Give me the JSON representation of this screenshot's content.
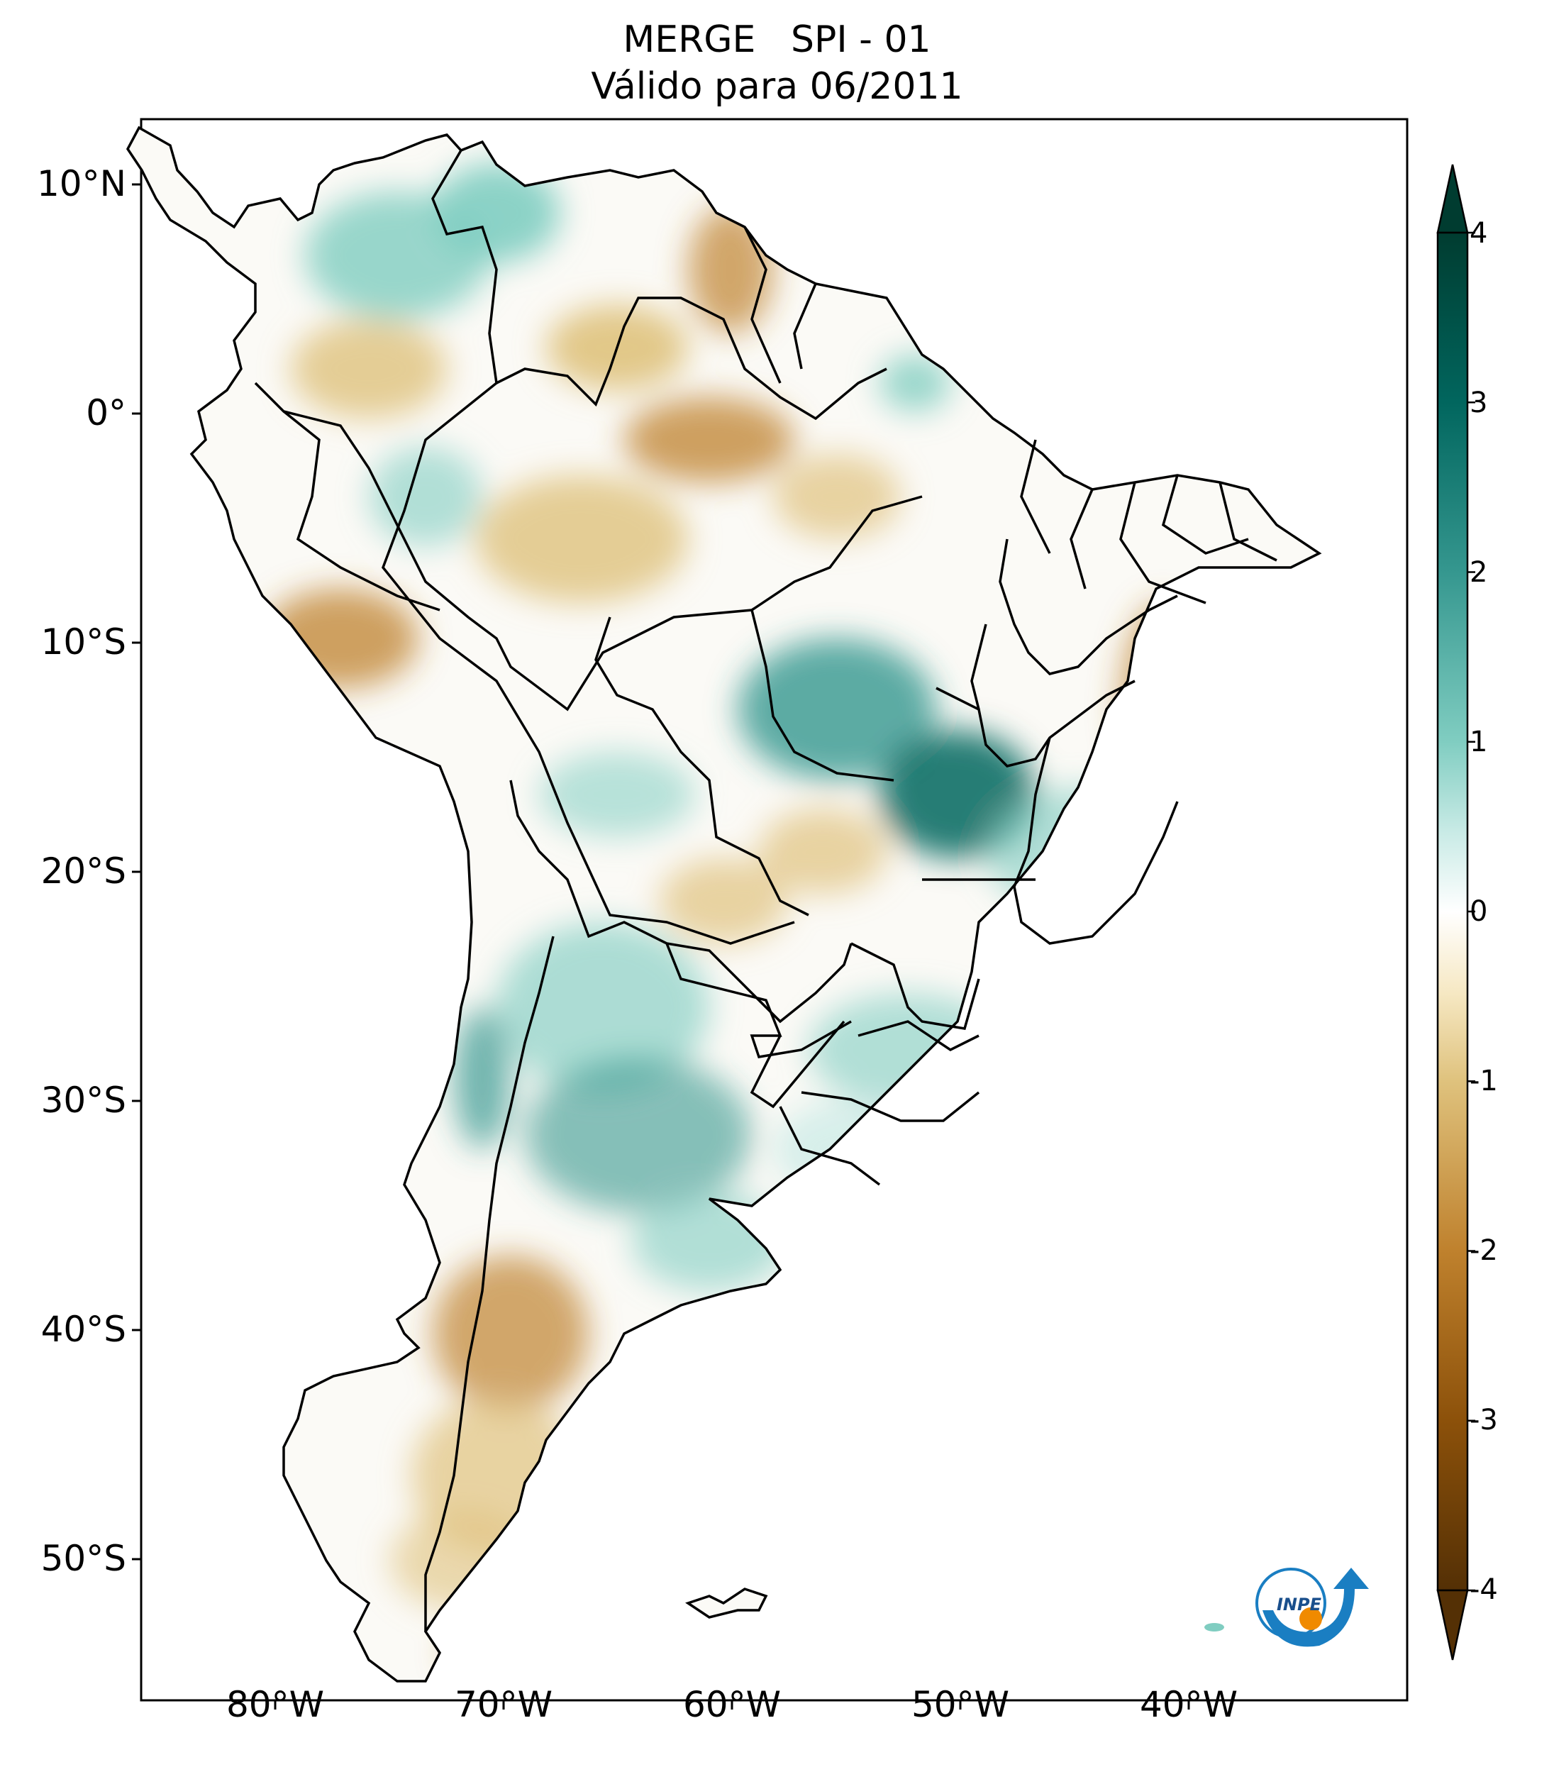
{
  "title": {
    "line1": "MERGE   SPI - 01",
    "line2": "Válido para 06/2011"
  },
  "axes": {
    "lat_ticks": [
      {
        "value": 10,
        "label": "10°N"
      },
      {
        "value": 0,
        "label": "0°"
      },
      {
        "value": -10,
        "label": "10°S"
      },
      {
        "value": -20,
        "label": "20°S"
      },
      {
        "value": -30,
        "label": "30°S"
      },
      {
        "value": -40,
        "label": "40°S"
      },
      {
        "value": -50,
        "label": "50°S"
      }
    ],
    "lon_ticks": [
      {
        "value": -80,
        "label": "80°W"
      },
      {
        "value": -70,
        "label": "70°W"
      },
      {
        "value": -60,
        "label": "60°W"
      },
      {
        "value": -50,
        "label": "50°W"
      },
      {
        "value": -40,
        "label": "40°W"
      }
    ],
    "lat_range": [
      -56,
      12.8
    ],
    "lon_range": [
      -85,
      -30
    ]
  },
  "colorbar": {
    "ticks": [
      {
        "value": 4,
        "label": "4"
      },
      {
        "value": 3,
        "label": "3"
      },
      {
        "value": 2,
        "label": "2"
      },
      {
        "value": 1,
        "label": "1"
      },
      {
        "value": 0,
        "label": "0"
      },
      {
        "value": -1,
        "label": "-1"
      },
      {
        "value": -2,
        "label": "-2"
      },
      {
        "value": -3,
        "label": "-3"
      },
      {
        "value": -4,
        "label": "-4"
      }
    ],
    "range": [
      -4,
      4
    ],
    "colors": {
      "dry_extreme": "#543005",
      "dry_strong": "#8c510a",
      "dry_moderate": "#bf812d",
      "dry_mild": "#dfc27d",
      "dry_weak": "#f6e8c3",
      "neutral": "#f5f5f5",
      "wet_weak": "#c7eae5",
      "wet_mild": "#80cdc1",
      "wet_moderate": "#35978f",
      "wet_strong": "#01665e",
      "wet_extreme": "#003c30"
    }
  },
  "logo": {
    "text": "INPE"
  },
  "map_colors": {
    "border": "#000000",
    "land_neutral": "#fbfaf6"
  }
}
